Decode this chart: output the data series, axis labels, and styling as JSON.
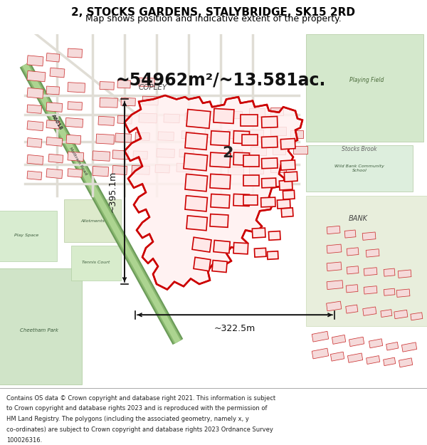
{
  "title_line1": "2, STOCKS GARDENS, STALYBRIDGE, SK15 2RD",
  "title_line2": "Map shows position and indicative extent of the property.",
  "area_text": "~54962m²/~13.581ac.",
  "dim_horizontal": "~322.5m",
  "dim_vertical": "~395.1m",
  "label_number": "2",
  "footer_lines": [
    "Contains OS data © Crown copyright and database right 2021. This information is subject",
    "to Crown copyright and database rights 2023 and is reproduced with the permission of",
    "HM Land Registry. The polygons (including the associated geometry, namely x, y",
    "co-ordinates) are subject to Crown copyright and database rights 2023 Ordnance Survey",
    "100026316."
  ],
  "map_bg": "#f0eeea",
  "green_road_color": "#7aab6e",
  "road_inner_color": "#c8dab0",
  "building_fill": "#f5d8d8",
  "building_edge": "#cc2222",
  "highlight_fill": "#ffffff",
  "highlight_edge": "#cc0000",
  "text_color": "#333333",
  "dim_arrow_color": "#111111",
  "footer_fontsize": 6.0,
  "title_fontsize": 11,
  "subtitle_fontsize": 9,
  "area_fontsize": 17,
  "dim_fontsize": 9,
  "map_label_fontsize": 6
}
